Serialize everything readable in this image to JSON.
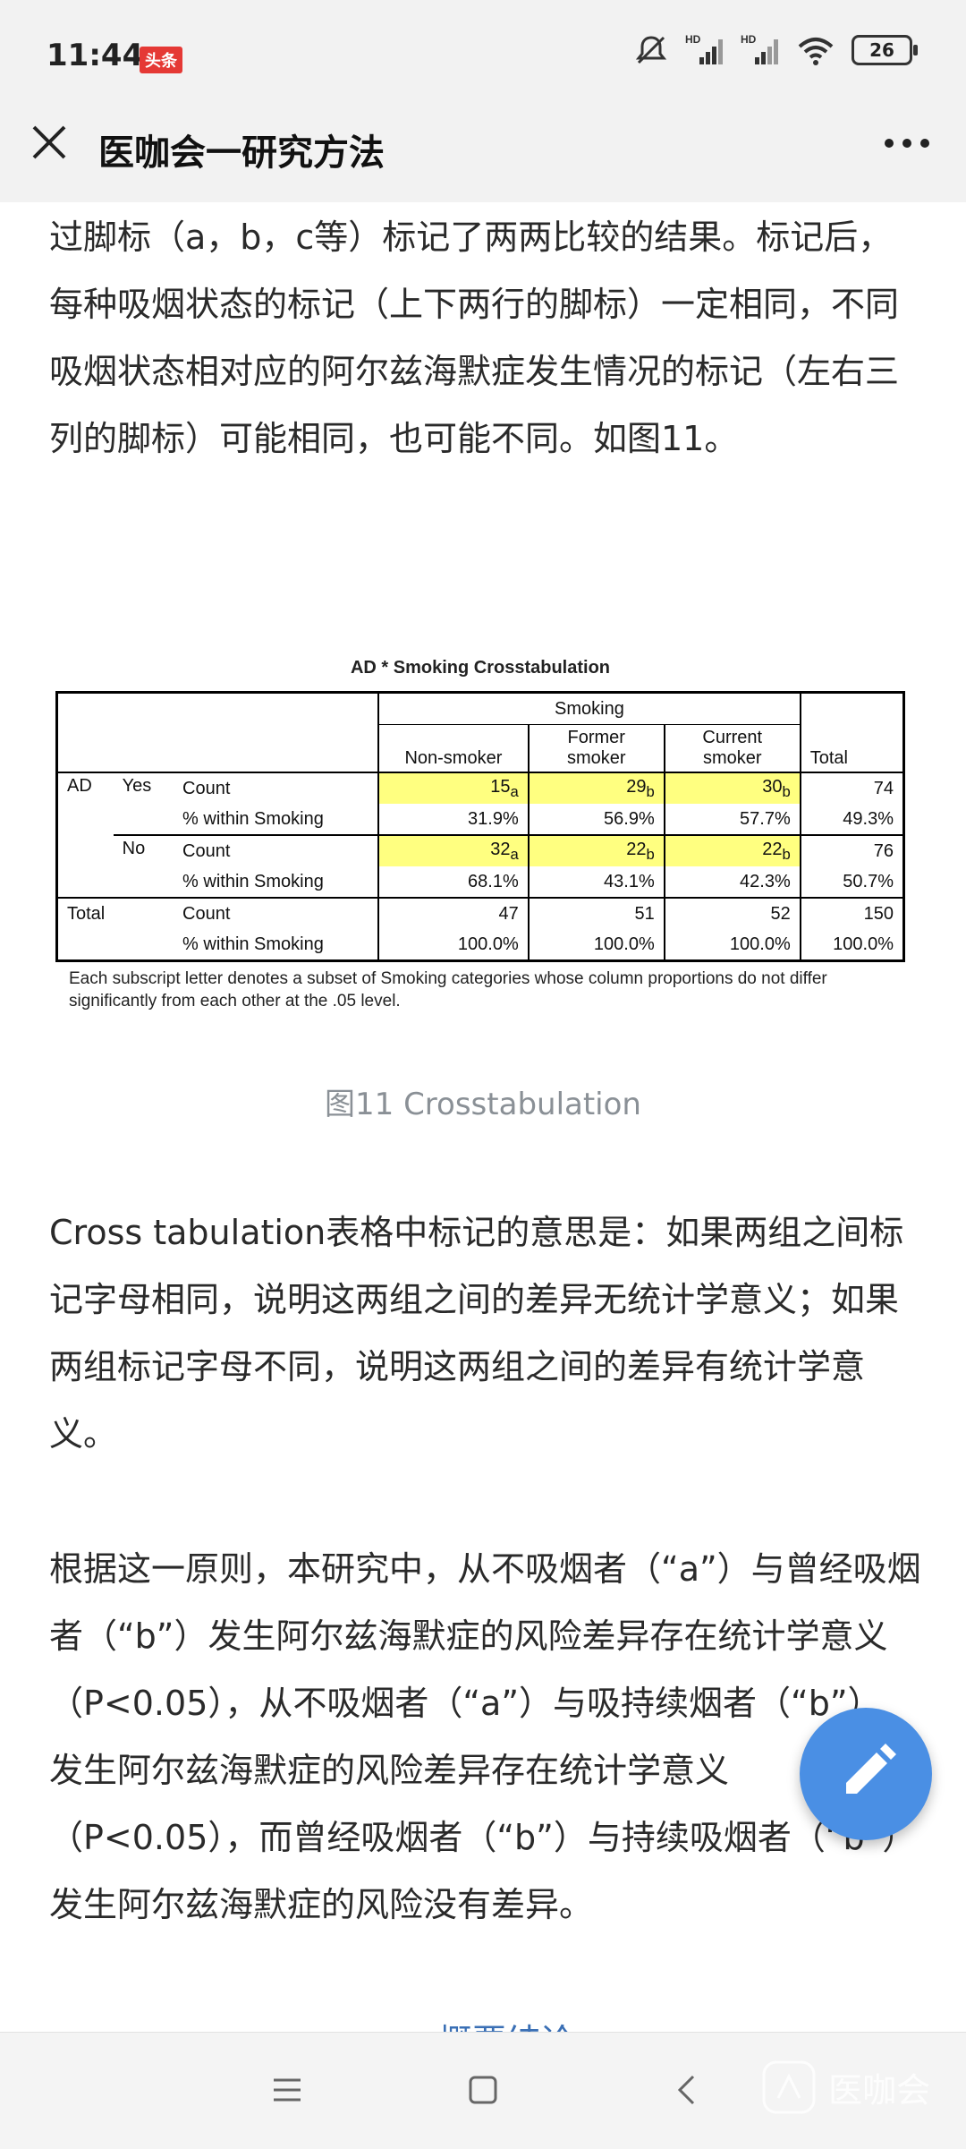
{
  "status": {
    "time": "11:44",
    "app_badge": "头条",
    "battery": "26",
    "hd1": "HD",
    "hd2": "HD"
  },
  "header": {
    "title": "医咖会一研究方法"
  },
  "article": {
    "para1": "过脚标（a，b，c等）标记了两两比较的结果。标记后，每种吸烟状态的标记（上下两行的脚标）一定相同，不同吸烟状态相对应的阿尔兹海默症发生情况的标记（左右三列的脚标）可能相同，也可能不同。如图11。",
    "caption": "图11 Crosstabulation",
    "para2": "Cross tabulation表格中标记的意思是：如果两组之间标记字母相同，说明这两组之间的差异无统计学意义；如果两组标记字母不同，说明这两组之间的差异有统计学意义。",
    "para3": "根据这一原则，本研究中，从不吸烟者（“a”）与曾经吸烟者（“b”）发生阿尔兹海默症的风险差异存在统计学意义（P<0.05），从不吸烟者（“a”）与吸持续烟者（“b”） 发生阿尔兹海默症的风险差异存在统计学意义（P<0.05），而曾经吸烟者（“b”）与持续吸烟者（“b”） 发生阿尔兹海默症的风险没有差异。",
    "partial_link": "概要结论"
  },
  "figure": {
    "title": "AD * Smoking Crosstabulation",
    "group_header": "Smoking",
    "col_nonsmoker": "Non-smoker",
    "col_former": "Former smoker",
    "col_current": "Current smoker",
    "col_total": "Total",
    "row_ad": "AD",
    "row_yes": "Yes",
    "row_no": "No",
    "row_total": "Total",
    "count": "Count",
    "pct": "% within Smoking",
    "yes_count": [
      "15",
      "29",
      "30",
      "74"
    ],
    "yes_sub": [
      "a",
      "b",
      "b"
    ],
    "yes_pct": [
      "31.9%",
      "56.9%",
      "57.7%",
      "49.3%"
    ],
    "no_count": [
      "32",
      "22",
      "22",
      "76"
    ],
    "no_sub": [
      "a",
      "b",
      "b"
    ],
    "no_pct": [
      "68.1%",
      "43.1%",
      "42.3%",
      "50.7%"
    ],
    "total_count": [
      "47",
      "51",
      "52",
      "150"
    ],
    "total_pct": [
      "100.0%",
      "100.0%",
      "100.0%",
      "100.0%"
    ],
    "footnote": "Each subscript letter denotes a subset of Smoking categories whose column proportions do not differ significantly from each other at the .05 level."
  },
  "colors": {
    "accent": "#4a8fe4",
    "highlight": "#ffff80"
  },
  "watermark": {
    "text": "医咖会"
  }
}
